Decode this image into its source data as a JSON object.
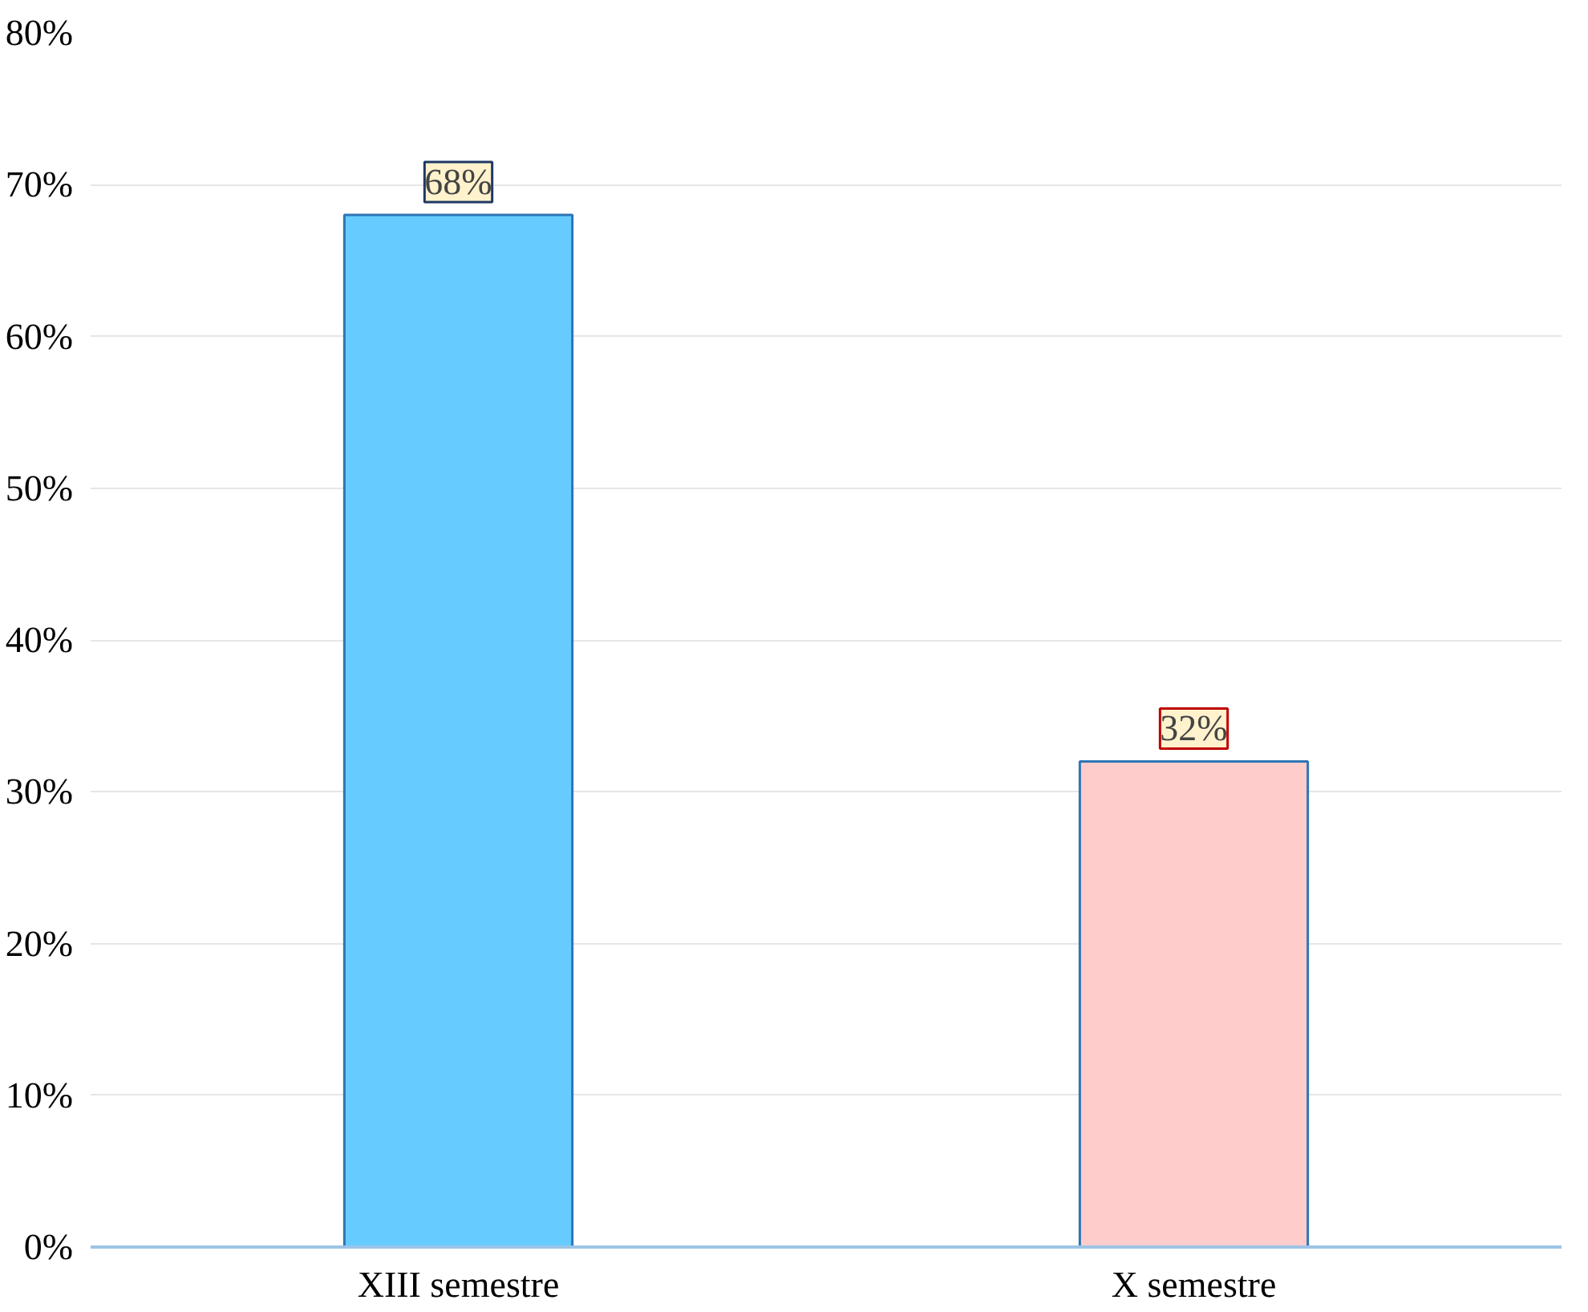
{
  "chart_data": {
    "type": "bar",
    "categories": [
      "XIII semestre",
      "X semestre"
    ],
    "values": [
      68,
      32
    ],
    "colors": [
      "#66ccff",
      "#ffcccc"
    ],
    "value_labels": [
      "68%",
      "32%"
    ],
    "ylim": [
      0,
      80
    ],
    "yticks": [
      {
        "value": 0,
        "label": "0%"
      },
      {
        "value": 10,
        "label": "10%"
      },
      {
        "value": 20,
        "label": "20%"
      },
      {
        "value": 30,
        "label": "30%"
      },
      {
        "value": 40,
        "label": "40%"
      },
      {
        "value": 50,
        "label": "50%"
      },
      {
        "value": 60,
        "label": "60%"
      },
      {
        "value": 70,
        "label": "70%"
      },
      {
        "value": 80,
        "label": "80%"
      }
    ],
    "grid": "y"
  }
}
